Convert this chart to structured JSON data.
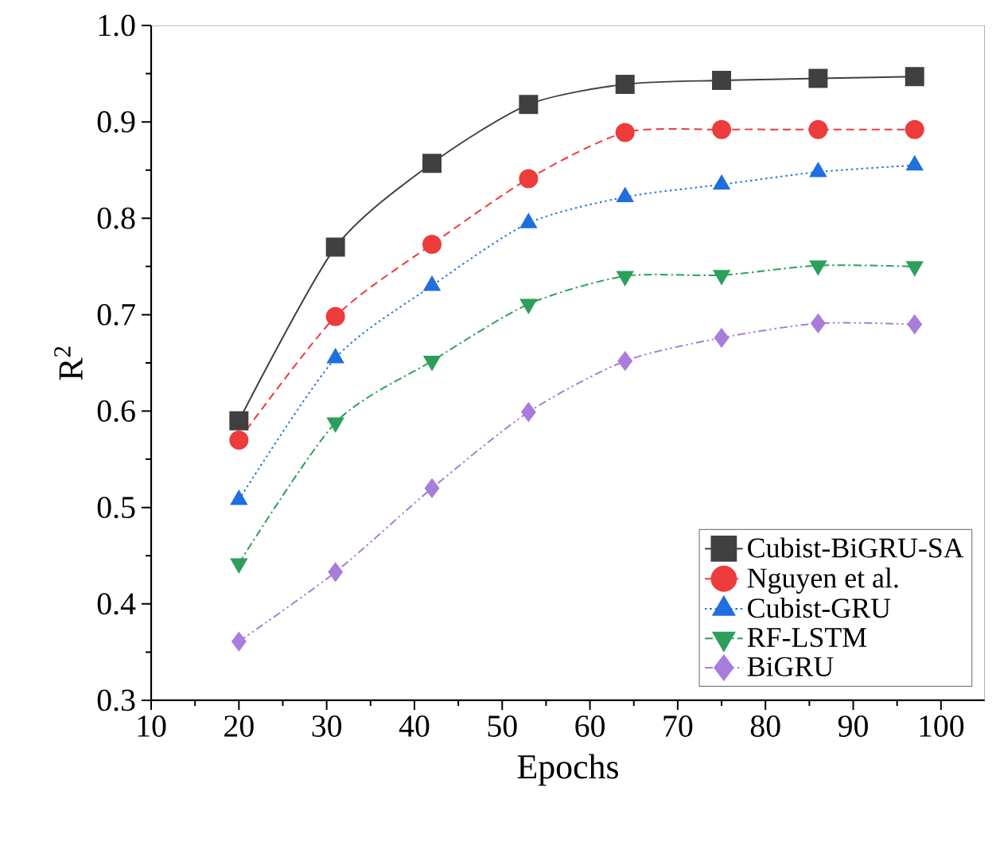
{
  "chart_data": {
    "type": "line",
    "xlabel": "Epochs",
    "ylabel": "R$^{2}$",
    "x": [
      20,
      31,
      42,
      53,
      64,
      75,
      86,
      97
    ],
    "xlim": [
      10,
      105
    ],
    "xticks": [
      10,
      20,
      30,
      40,
      50,
      60,
      70,
      80,
      90,
      100
    ],
    "ylim": [
      0.3,
      1.0
    ],
    "yticks": [
      0.3,
      0.4,
      0.5,
      0.6,
      0.7,
      0.8,
      0.9,
      {
        "value": 1.0,
        "label": "1.0"
      }
    ],
    "grid": false,
    "legend": "bottom right",
    "series": [
      {
        "name": "Cubist-BiGRU-SA",
        "color": "#404040",
        "marker": "square",
        "line_style": "solid",
        "values": [
          0.59,
          0.77,
          0.857,
          0.918,
          0.939,
          0.943,
          0.945,
          0.947
        ]
      },
      {
        "name": "Nguyen et al.",
        "color": "#ee3b3b",
        "marker": "circle",
        "line_style": "dashed",
        "values": [
          0.57,
          0.698,
          0.773,
          0.841,
          0.889,
          0.892,
          0.892,
          0.892
        ]
      },
      {
        "name": "Cubist-GRU",
        "color": "#1f6fe0",
        "marker": "triangle",
        "line_style": "dotted",
        "values": [
          0.508,
          0.655,
          0.73,
          0.795,
          0.822,
          0.835,
          0.848,
          0.855
        ]
      },
      {
        "name": "RF-LSTM",
        "color": "#2ca05a",
        "marker": "triangle-down",
        "line_style": "dashdot",
        "values": [
          0.442,
          0.588,
          0.652,
          0.711,
          0.74,
          0.741,
          0.751,
          0.75
        ]
      },
      {
        "name": "BiGRU",
        "color": "#a87ddb",
        "marker": "diamond",
        "line_style": "dashdotdot",
        "values": [
          0.361,
          0.433,
          0.52,
          0.599,
          0.652,
          0.676,
          0.691,
          0.69
        ]
      }
    ]
  }
}
